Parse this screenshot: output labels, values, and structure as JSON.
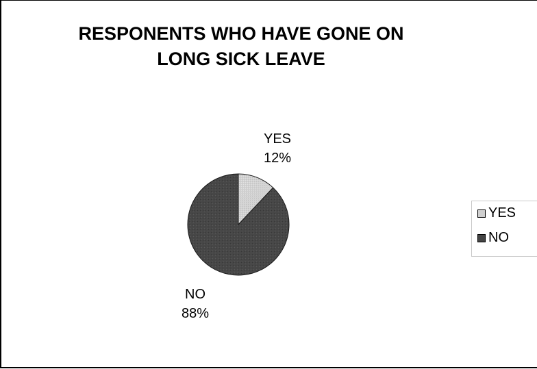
{
  "chart_data": {
    "type": "pie",
    "title_lines": [
      "RESPONENTS WHO HAVE GONE ON",
      "LONG SICK LEAVE"
    ],
    "categories": [
      "YES",
      "NO"
    ],
    "values": [
      12,
      88
    ],
    "data_labels": [
      {
        "category": "YES",
        "percent": "12%"
      },
      {
        "category": "NO",
        "percent": "88%"
      }
    ],
    "colors": [
      "#cfcfcf",
      "#444444"
    ],
    "legend": {
      "position": "right",
      "entries": [
        "YES",
        "NO"
      ]
    }
  }
}
